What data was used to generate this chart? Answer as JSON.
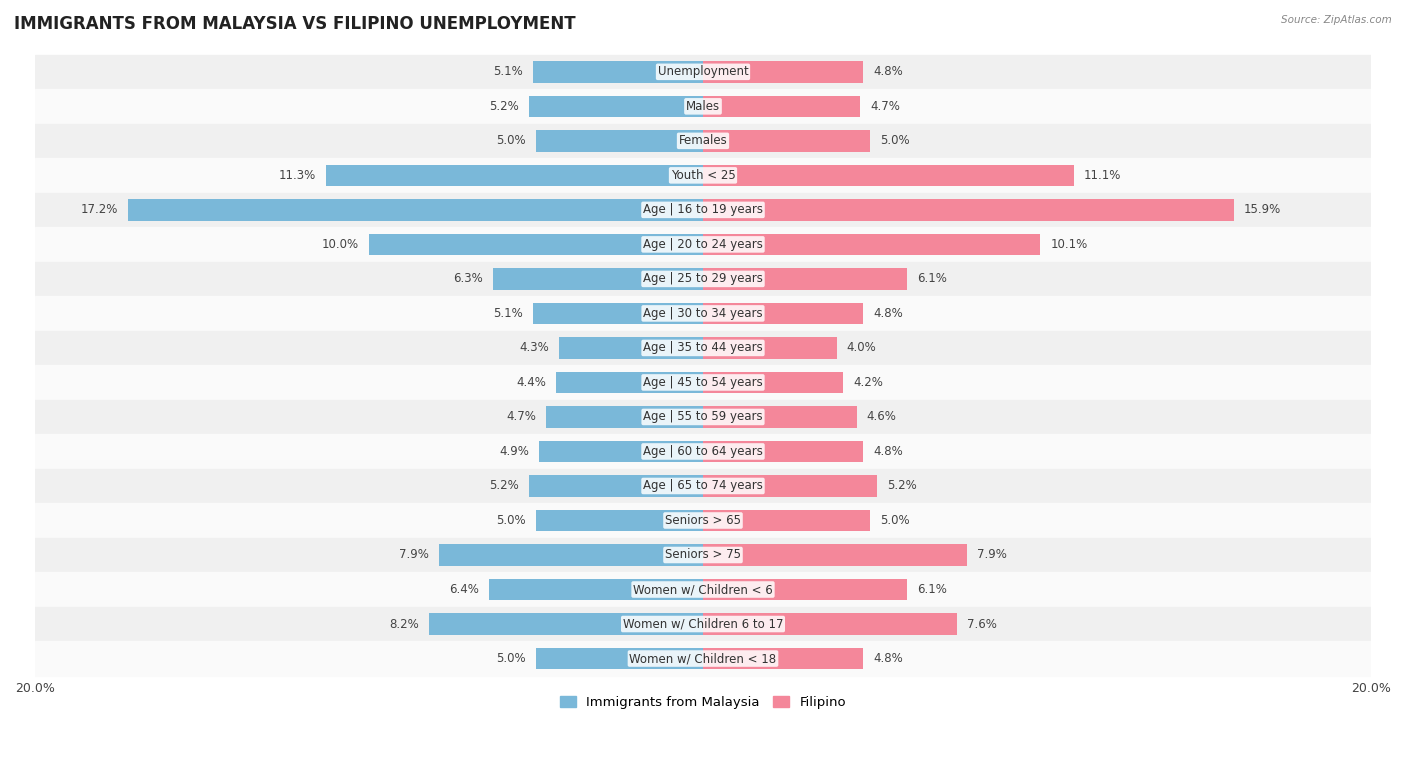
{
  "title": "IMMIGRANTS FROM MALAYSIA VS FILIPINO UNEMPLOYMENT",
  "source": "Source: ZipAtlas.com",
  "categories": [
    "Unemployment",
    "Males",
    "Females",
    "Youth < 25",
    "Age | 16 to 19 years",
    "Age | 20 to 24 years",
    "Age | 25 to 29 years",
    "Age | 30 to 34 years",
    "Age | 35 to 44 years",
    "Age | 45 to 54 years",
    "Age | 55 to 59 years",
    "Age | 60 to 64 years",
    "Age | 65 to 74 years",
    "Seniors > 65",
    "Seniors > 75",
    "Women w/ Children < 6",
    "Women w/ Children 6 to 17",
    "Women w/ Children < 18"
  ],
  "malaysia_values": [
    5.1,
    5.2,
    5.0,
    11.3,
    17.2,
    10.0,
    6.3,
    5.1,
    4.3,
    4.4,
    4.7,
    4.9,
    5.2,
    5.0,
    7.9,
    6.4,
    8.2,
    5.0
  ],
  "filipino_values": [
    4.8,
    4.7,
    5.0,
    11.1,
    15.9,
    10.1,
    6.1,
    4.8,
    4.0,
    4.2,
    4.6,
    4.8,
    5.2,
    5.0,
    7.9,
    6.1,
    7.6,
    4.8
  ],
  "malaysia_color": "#7ab8d9",
  "filipino_color": "#f4879a",
  "malaysia_label": "Immigrants from Malaysia",
  "filipino_label": "Filipino",
  "x_max": 20.0,
  "row_colors": [
    "#f0f0f0",
    "#fafafa"
  ],
  "title_fontsize": 12,
  "label_fontsize": 8.5,
  "value_fontsize": 8.5
}
